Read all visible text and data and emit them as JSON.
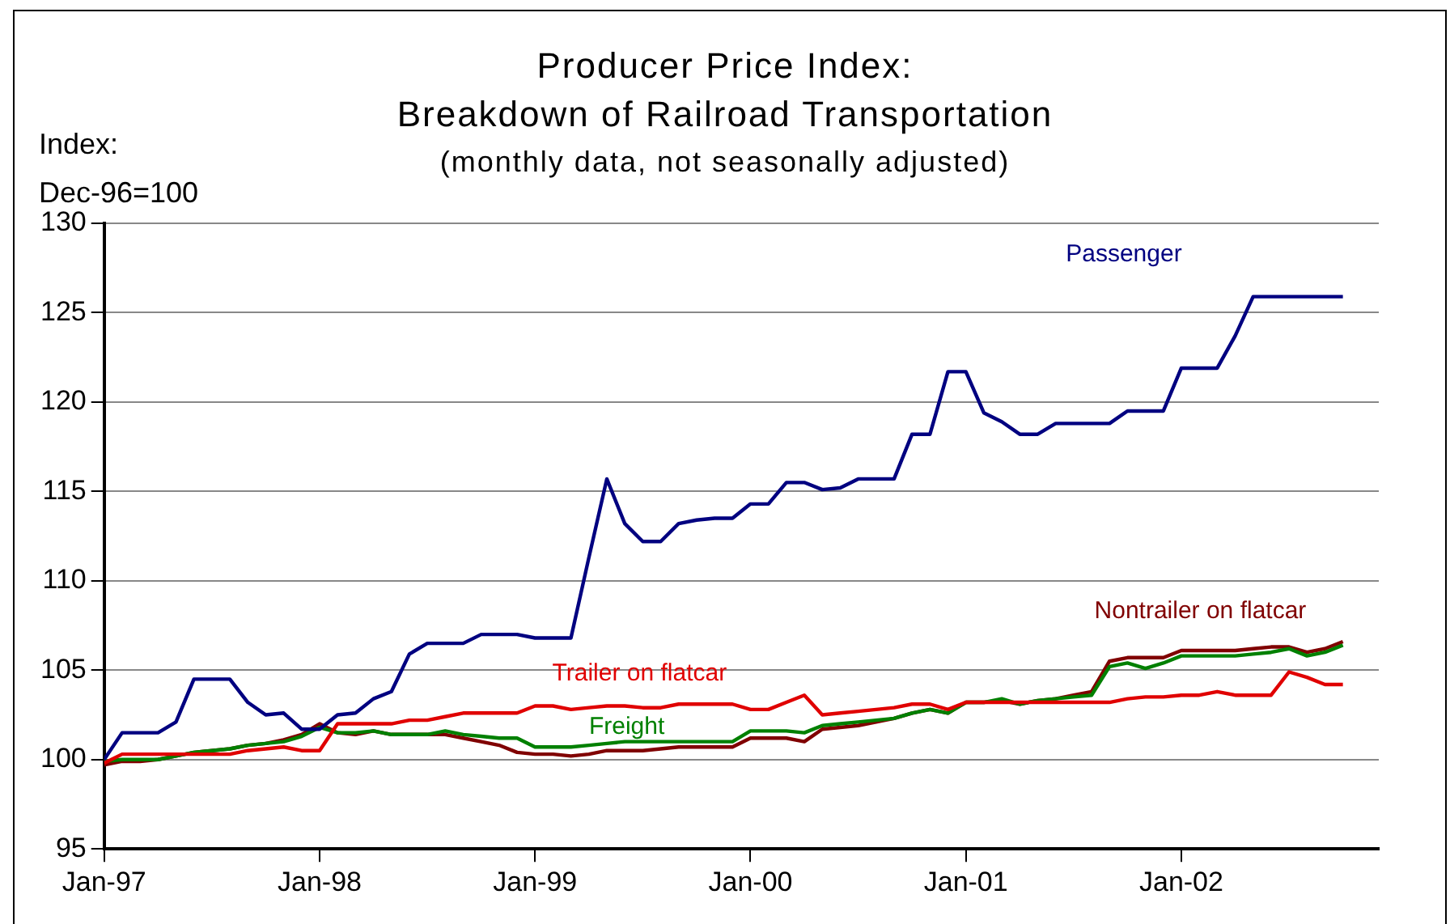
{
  "chart_data": {
    "type": "line",
    "title": "Producer Price Index:\nBreakdown of Railroad Transportation",
    "subtitle": "(monthly data, not seasonally adjusted)",
    "ylabel": "Index:\nDec-96=100",
    "x": [
      "1997-01",
      "1997-02",
      "1997-03",
      "1997-04",
      "1997-05",
      "1997-06",
      "1997-07",
      "1997-08",
      "1997-09",
      "1997-10",
      "1997-11",
      "1997-12",
      "1998-01",
      "1998-02",
      "1998-03",
      "1998-04",
      "1998-05",
      "1998-06",
      "1998-07",
      "1998-08",
      "1998-09",
      "1998-10",
      "1998-11",
      "1998-12",
      "1999-01",
      "1999-02",
      "1999-03",
      "1999-04",
      "1999-05",
      "1999-06",
      "1999-07",
      "1999-08",
      "1999-09",
      "1999-10",
      "1999-11",
      "1999-12",
      "2000-01",
      "2000-02",
      "2000-03",
      "2000-04",
      "2000-05",
      "2000-06",
      "2000-07",
      "2000-08",
      "2000-09",
      "2000-10",
      "2000-11",
      "2000-12",
      "2001-01",
      "2001-02",
      "2001-03",
      "2001-04",
      "2001-05",
      "2001-06",
      "2001-07",
      "2001-08",
      "2001-09",
      "2001-10",
      "2001-11",
      "2001-12",
      "2002-01",
      "2002-02",
      "2002-03",
      "2002-04",
      "2002-05",
      "2002-06",
      "2002-07",
      "2002-08",
      "2002-09",
      "2002-10"
    ],
    "series": [
      {
        "name": "Passenger",
        "color": "#000080",
        "values": [
          100,
          101.5,
          101.5,
          101.5,
          102.1,
          104.5,
          104.5,
          104.5,
          103.2,
          102.5,
          102.6,
          101.7,
          101.7,
          102.5,
          102.6,
          103.4,
          103.8,
          105.9,
          106.5,
          106.5,
          106.5,
          107.0,
          107.0,
          107.0,
          106.8,
          106.8,
          106.8,
          111.3,
          115.7,
          113.2,
          112.2,
          112.2,
          113.2,
          113.4,
          113.5,
          113.5,
          114.3,
          114.3,
          115.5,
          115.5,
          115.1,
          115.2,
          115.7,
          115.7,
          115.7,
          118.2,
          118.2,
          121.7,
          121.7,
          119.4,
          118.9,
          118.2,
          118.2,
          118.8,
          118.8,
          118.8,
          118.8,
          119.5,
          119.5,
          119.5,
          121.9,
          121.9,
          121.9,
          123.7,
          125.9,
          125.9,
          125.9,
          125.9,
          125.9,
          125.9
        ]
      },
      {
        "name": "Trailer on flatcar",
        "color": "#e00000",
        "values": [
          99.8,
          100.3,
          100.3,
          100.3,
          100.3,
          100.3,
          100.3,
          100.3,
          100.5,
          100.6,
          100.7,
          100.5,
          100.5,
          102.0,
          102.0,
          102.0,
          102.0,
          102.2,
          102.2,
          102.4,
          102.6,
          102.6,
          102.6,
          102.6,
          103.0,
          103.0,
          102.8,
          102.9,
          103.0,
          103.0,
          102.9,
          102.9,
          103.1,
          103.1,
          103.1,
          103.1,
          102.8,
          102.8,
          103.2,
          103.6,
          102.5,
          102.6,
          102.7,
          102.8,
          102.9,
          103.1,
          103.1,
          102.8,
          103.2,
          103.2,
          103.2,
          103.2,
          103.2,
          103.2,
          103.2,
          103.2,
          103.2,
          103.4,
          103.5,
          103.5,
          103.6,
          103.6,
          103.8,
          103.6,
          103.6,
          103.6,
          104.9,
          104.6,
          104.2,
          104.2
        ]
      },
      {
        "name": "Freight",
        "color": "#008000",
        "values": [
          99.9,
          100,
          100,
          100,
          100.2,
          100.4,
          100.5,
          100.6,
          100.8,
          100.9,
          101.0,
          101.3,
          101.8,
          101.5,
          101.5,
          101.6,
          101.4,
          101.4,
          101.4,
          101.6,
          101.4,
          101.3,
          101.2,
          101.2,
          100.7,
          100.7,
          100.7,
          100.8,
          100.9,
          101.0,
          101.0,
          101.0,
          101.0,
          101.0,
          101.0,
          101.0,
          101.6,
          101.6,
          101.6,
          101.5,
          101.9,
          102.0,
          102.1,
          102.2,
          102.3,
          102.6,
          102.8,
          102.6,
          103.2,
          103.2,
          103.4,
          103.1,
          103.3,
          103.4,
          103.5,
          103.6,
          105.2,
          105.4,
          105.1,
          105.4,
          105.8,
          105.8,
          105.8,
          105.8,
          105.9,
          106.0,
          106.2,
          105.8,
          106.0,
          106.4
        ]
      },
      {
        "name": "Nontrailer on flatcar",
        "color": "#800000",
        "values": [
          99.7,
          99.9,
          99.9,
          100.0,
          100.2,
          100.4,
          100.5,
          100.6,
          100.8,
          100.9,
          101.1,
          101.4,
          102.0,
          101.5,
          101.4,
          101.6,
          101.4,
          101.4,
          101.4,
          101.4,
          101.2,
          101.0,
          100.8,
          100.4,
          100.3,
          100.3,
          100.2,
          100.3,
          100.5,
          100.5,
          100.5,
          100.6,
          100.7,
          100.7,
          100.7,
          100.7,
          101.2,
          101.2,
          101.2,
          101.0,
          101.7,
          101.8,
          101.9,
          102.1,
          102.3,
          102.6,
          102.8,
          102.6,
          103.2,
          103.2,
          103.3,
          103.1,
          103.3,
          103.4,
          103.6,
          103.8,
          105.5,
          105.7,
          105.7,
          105.7,
          106.1,
          106.1,
          106.1,
          106.1,
          106.2,
          106.3,
          106.3,
          106.0,
          106.2,
          106.6
        ]
      }
    ],
    "xlim": [
      "1997-01",
      "2002-12"
    ],
    "xticks": [
      {
        "value": "1997-01",
        "label": "Jan-97"
      },
      {
        "value": "1998-01",
        "label": "Jan-98"
      },
      {
        "value": "1999-01",
        "label": "Jan-99"
      },
      {
        "value": "2000-01",
        "label": "Jan-00"
      },
      {
        "value": "2001-01",
        "label": "Jan-01"
      },
      {
        "value": "2002-01",
        "label": "Jan-02"
      }
    ],
    "ylim": [
      95,
      130
    ],
    "yticks": [
      95,
      100,
      105,
      110,
      115,
      120,
      125,
      130
    ],
    "grid": "y",
    "marker": "none",
    "line_style": "solid"
  }
}
